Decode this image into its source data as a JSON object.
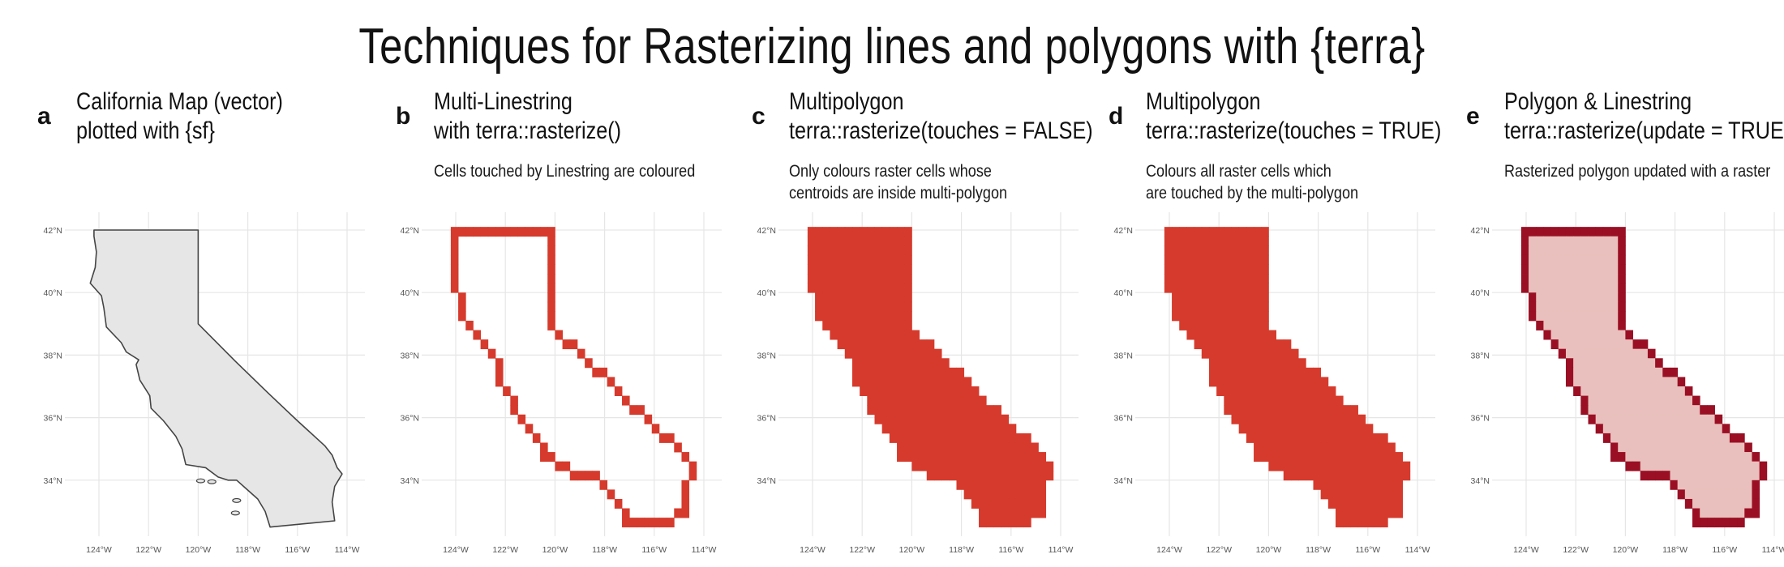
{
  "title": "Techniques for Rasterizing lines and polygons with {terra}",
  "colors": {
    "raster": "#d63a2c",
    "outline": "#9a0f24",
    "fill_light": "#e9c0bd",
    "vector_fill": "#e6e6e6",
    "vector_stroke": "#444444",
    "grid": "#e6e6e6"
  },
  "axes": {
    "x_ticks": [
      "124°W",
      "122°W",
      "120°W",
      "118°W",
      "116°W",
      "114°W"
    ],
    "y_ticks": [
      "42°N",
      "40°N",
      "38°N",
      "36°N",
      "34°N"
    ]
  },
  "panels": [
    {
      "letter": "a",
      "title_line1": "California Map (vector)",
      "title_line2": "plotted with {sf}",
      "subtitle_line1": "",
      "subtitle_line2": "",
      "style": "vector"
    },
    {
      "letter": "b",
      "title_line1": "Multi-Linestring",
      "title_line2": "with terra::rasterize()",
      "subtitle_line1": "Cells touched by Linestring are coloured",
      "subtitle_line2": "",
      "style": "lines"
    },
    {
      "letter": "c",
      "title_line1": "Multipolygon",
      "title_line2": "terra::rasterize(touches = FALSE)",
      "subtitle_line1": "Only colours raster cells whose",
      "subtitle_line2": "centroids are inside multi-polygon",
      "style": "fill"
    },
    {
      "letter": "d",
      "title_line1": "Multipolygon",
      "title_line2": "terra::rasterize(touches = TRUE)",
      "subtitle_line1": "Colours all raster cells which",
      "subtitle_line2": "are touched by the multi-polygon",
      "style": "fill"
    },
    {
      "letter": "e",
      "title_line1": "Polygon & Linestring",
      "title_line2": "terra::rasterize(update = TRUE)",
      "subtitle_line1": "Rasterized polygon updated with a raster",
      "subtitle_line2": "",
      "style": "update"
    }
  ]
}
